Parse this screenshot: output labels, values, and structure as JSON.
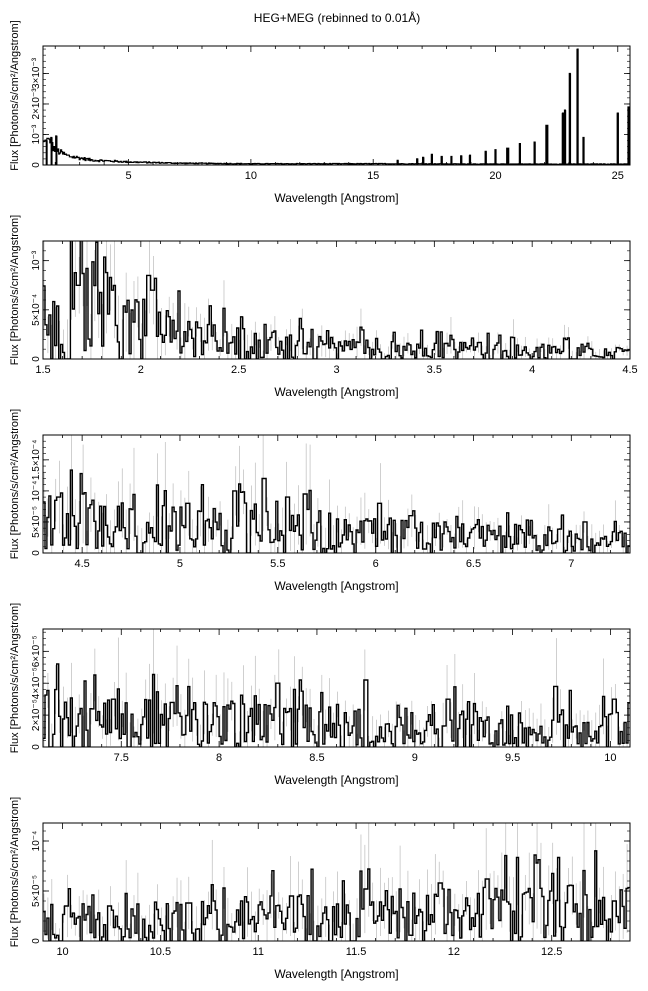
{
  "title": "HEG+MEG (rebinned to 0.01Å)",
  "chart_data": [
    {
      "type": "line",
      "style": "histogram-step with error bars",
      "xlabel": "Wavelength [Angstrom]",
      "ylabel": "Flux [Photons/s/cm²/Angstrom]",
      "xlim": [
        1.5,
        25.5
      ],
      "ylim": [
        0,
        0.0039
      ],
      "xticks": [
        5,
        10,
        15,
        20,
        25
      ],
      "yticks": [
        {
          "v": 0,
          "label": "0"
        },
        {
          "v": 0.001,
          "label": "10⁻³"
        },
        {
          "v": 0.002,
          "label": "2×10⁻³"
        },
        {
          "v": 0.003,
          "label": "3×10⁻³"
        }
      ],
      "continuum": [
        [
          1.5,
          0.0007
        ],
        [
          1.7,
          0.0008
        ],
        [
          2.0,
          0.0005
        ],
        [
          2.5,
          0.0003
        ],
        [
          3.5,
          0.00016
        ],
        [
          5,
          0.0001
        ],
        [
          7,
          6e-05
        ],
        [
          10,
          4e-05
        ],
        [
          13,
          4e-05
        ],
        [
          16,
          4e-05
        ],
        [
          20,
          3e-05
        ],
        [
          25.5,
          3e-05
        ]
      ],
      "lines": [
        {
          "x": 1.65,
          "y": 0.0008
        },
        {
          "x": 1.85,
          "y": 0.0009
        },
        {
          "x": 2.05,
          "y": 0.00095
        },
        {
          "x": 16.0,
          "y": 0.00015
        },
        {
          "x": 16.8,
          "y": 0.0002
        },
        {
          "x": 17.05,
          "y": 0.00025
        },
        {
          "x": 17.4,
          "y": 0.00035
        },
        {
          "x": 17.8,
          "y": 0.00028
        },
        {
          "x": 18.2,
          "y": 0.00028
        },
        {
          "x": 18.6,
          "y": 0.0003
        },
        {
          "x": 18.95,
          "y": 0.00032
        },
        {
          "x": 19.6,
          "y": 0.00045
        },
        {
          "x": 20.0,
          "y": 0.0005
        },
        {
          "x": 20.5,
          "y": 0.00055
        },
        {
          "x": 21.0,
          "y": 0.0007
        },
        {
          "x": 21.6,
          "y": 0.00075
        },
        {
          "x": 22.1,
          "y": 0.0013
        },
        {
          "x": 22.75,
          "y": 0.0017
        },
        {
          "x": 22.85,
          "y": 0.0018
        },
        {
          "x": 23.05,
          "y": 0.003
        },
        {
          "x": 23.35,
          "y": 0.0038
        },
        {
          "x": 23.6,
          "y": 0.0009
        },
        {
          "x": 25.0,
          "y": 0.0017
        },
        {
          "x": 25.45,
          "y": 0.0019
        }
      ]
    },
    {
      "type": "line",
      "style": "histogram-step with error bars",
      "xlabel": "Wavelength [Angstrom]",
      "ylabel": "Flux [Photons/s/cm²/Angstrom]",
      "xlim": [
        1.5,
        4.5
      ],
      "ylim": [
        0,
        0.0012
      ],
      "xticks": [
        1.5,
        2,
        2.5,
        3,
        3.5,
        4,
        4.5
      ],
      "yticks": [
        {
          "v": 0,
          "label": "0"
        },
        {
          "v": 0.0005,
          "label": "5×10⁻⁴"
        },
        {
          "v": 0.001,
          "label": "10⁻³"
        }
      ],
      "continuum": [
        [
          1.5,
          0.00025
        ],
        [
          1.6,
          0.0004
        ],
        [
          1.7,
          0.00055
        ],
        [
          1.8,
          0.0005
        ],
        [
          1.9,
          0.00042
        ],
        [
          2.0,
          0.0004
        ],
        [
          2.1,
          0.0003
        ],
        [
          2.3,
          0.00022
        ],
        [
          2.5,
          0.00017
        ],
        [
          3.0,
          0.00012
        ],
        [
          3.5,
          0.0001
        ],
        [
          4.0,
          8e-05
        ],
        [
          4.5,
          6e-05
        ]
      ],
      "lines": [
        {
          "x": 1.68,
          "y": 0.00075
        },
        {
          "x": 1.85,
          "y": 0.0007
        },
        {
          "x": 2.04,
          "y": 0.00085
        },
        {
          "x": 2.06,
          "y": 0.0007
        },
        {
          "x": 2.25,
          "y": 0.0003
        }
      ]
    },
    {
      "type": "line",
      "style": "histogram-step with error bars",
      "xlabel": "Wavelength [Angstrom]",
      "ylabel": "Flux [Photons/s/cm²/Angstrom]",
      "xlim": [
        4.3,
        7.3
      ],
      "ylim": [
        0,
        0.00019
      ],
      "xticks": [
        4.5,
        5,
        5.5,
        6,
        6.5,
        7
      ],
      "yticks": [
        {
          "v": 0,
          "label": "0"
        },
        {
          "v": 5e-05,
          "label": "5×10⁻⁵"
        },
        {
          "v": 0.0001,
          "label": "10⁻⁴"
        },
        {
          "v": 0.00015,
          "label": "1.5×10⁻⁴"
        }
      ],
      "continuum": [
        [
          4.3,
          5e-05
        ],
        [
          5.0,
          4e-05
        ],
        [
          5.5,
          4.5e-05
        ],
        [
          6.0,
          3e-05
        ],
        [
          6.5,
          2.5e-05
        ],
        [
          7.0,
          2.2e-05
        ],
        [
          7.3,
          2e-05
        ]
      ],
      "lines": [
        {
          "x": 4.38,
          "y": 9e-05
        },
        {
          "x": 4.5,
          "y": 9.5e-05
        },
        {
          "x": 4.75,
          "y": 7e-05
        },
        {
          "x": 5.04,
          "y": 8e-05
        },
        {
          "x": 5.28,
          "y": 0.0001
        },
        {
          "x": 5.43,
          "y": 0.00012
        },
        {
          "x": 5.55,
          "y": 9e-05
        },
        {
          "x": 5.64,
          "y": 9.5e-05
        },
        {
          "x": 6.02,
          "y": 8e-05
        },
        {
          "x": 6.18,
          "y": 6e-05
        },
        {
          "x": 7.07,
          "y": 5e-05
        }
      ]
    },
    {
      "type": "line",
      "style": "histogram-step with error bars",
      "xlabel": "Wavelength [Angstrom]",
      "ylabel": "Flux [Photons/s/cm²/Angstrom]",
      "xlim": [
        7.1,
        10.1
      ],
      "ylim": [
        0,
        7.4e-05
      ],
      "xticks": [
        7.5,
        8,
        8.5,
        9,
        9.5,
        10
      ],
      "yticks": [
        {
          "v": 0,
          "label": "0"
        },
        {
          "v": 2e-05,
          "label": "2×10⁻⁵"
        },
        {
          "v": 4e-05,
          "label": "4×10⁻⁵"
        },
        {
          "v": 6e-05,
          "label": "6×10⁻⁵"
        }
      ],
      "continuum": [
        [
          7.1,
          1.8e-05
        ],
        [
          7.5,
          1.6e-05
        ],
        [
          8.0,
          1.5e-05
        ],
        [
          8.5,
          1.4e-05
        ],
        [
          9.0,
          1.3e-05
        ],
        [
          9.5,
          1.2e-05
        ],
        [
          10.1,
          1.2e-05
        ]
      ],
      "lines": [
        {
          "x": 7.17,
          "y": 3.6e-05
        },
        {
          "x": 7.46,
          "y": 3e-05
        },
        {
          "x": 7.76,
          "y": 2.8e-05
        },
        {
          "x": 8.3,
          "y": 4e-05
        },
        {
          "x": 8.42,
          "y": 3.5e-05
        },
        {
          "x": 8.75,
          "y": 4.2e-05
        },
        {
          "x": 9.17,
          "y": 3e-05
        },
        {
          "x": 9.72,
          "y": 3.8e-05
        },
        {
          "x": 10.02,
          "y": 3e-05
        }
      ]
    },
    {
      "type": "line",
      "style": "histogram-step with error bars",
      "xlabel": "Wavelength [Angstrom]",
      "ylabel": "Flux [Photons/s/cm²/Angstrom]",
      "xlim": [
        9.9,
        12.9
      ],
      "ylim": [
        0,
        0.000118
      ],
      "xticks": [
        10,
        10.5,
        11,
        11.5,
        12,
        12.5
      ],
      "yticks": [
        {
          "v": 0,
          "label": "0"
        },
        {
          "v": 5e-05,
          "label": "5×10⁻⁵"
        },
        {
          "v": 0.0001,
          "label": "10⁻⁴"
        }
      ],
      "continuum": [
        [
          9.9,
          2e-05
        ],
        [
          10.5,
          2.2e-05
        ],
        [
          11.0,
          2.4e-05
        ],
        [
          11.5,
          2.6e-05
        ],
        [
          12.0,
          2.8e-05
        ],
        [
          12.5,
          3e-05
        ],
        [
          12.9,
          3.2e-05
        ]
      ],
      "lines": [
        {
          "x": 10.02,
          "y": 3.5e-05
        },
        {
          "x": 10.24,
          "y": 3.5e-05
        },
        {
          "x": 10.64,
          "y": 3.8e-05
        },
        {
          "x": 10.77,
          "y": 4e-05
        },
        {
          "x": 11.17,
          "y": 4.5e-05
        },
        {
          "x": 11.55,
          "y": 5.2e-05
        },
        {
          "x": 11.93,
          "y": 5.8e-05
        },
        {
          "x": 12.17,
          "y": 6.2e-05
        },
        {
          "x": 12.82,
          "y": 4e-05
        }
      ]
    }
  ]
}
